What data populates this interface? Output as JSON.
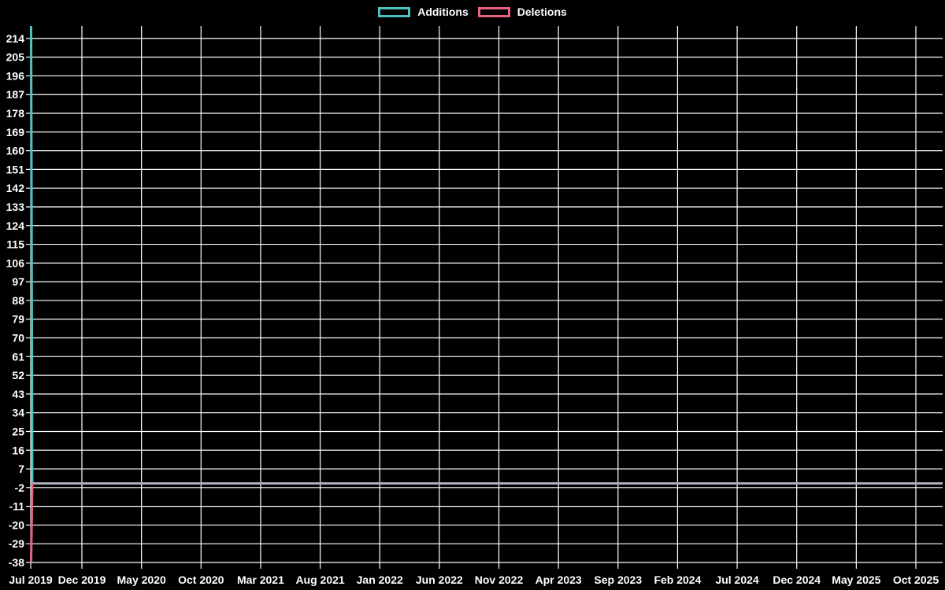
{
  "app": {
    "background_color": "#000000",
    "text_color": "#ffffff"
  },
  "legend": {
    "position": "top-center",
    "items": [
      {
        "label": "Additions",
        "color": "#4ec1c1"
      },
      {
        "label": "Deletions",
        "color": "#eb6180"
      }
    ]
  },
  "chart_data": {
    "type": "line",
    "title": "",
    "xlabel": "",
    "ylabel": "",
    "description": "Weekly additions/deletions frequency chart. Both series spike in the first week of Jul 2019 (additions to ~220 at chart top, deletions to -38) and are 0 for every later week through Oct 2025, drawing a flat overlapping baseline at 0.",
    "x_axis": {
      "tick_labels": [
        "Jul 2019",
        "Dec 2019",
        "May 2020",
        "Oct 2020",
        "Mar 2021",
        "Aug 2021",
        "Jan 2022",
        "Jun 2022",
        "Nov 2022",
        "Apr 2023",
        "Sep 2023",
        "Feb 2024",
        "Jul 2024",
        "Dec 2024",
        "May 2025",
        "Oct 2025"
      ]
    },
    "y_axis": {
      "ticks": [
        214,
        205,
        196,
        187,
        178,
        169,
        160,
        151,
        142,
        133,
        124,
        115,
        106,
        97,
        88,
        79,
        70,
        61,
        52,
        43,
        34,
        25,
        16,
        7,
        -2,
        -11,
        -20,
        -29,
        -38
      ],
      "tick_step": 9,
      "drawn_range": [
        -38,
        220
      ]
    },
    "series": [
      {
        "name": "Additions",
        "color": "#4ec1c1",
        "points": [
          {
            "x": "Jul 2019 (first week)",
            "y": 220
          },
          {
            "x": "all later weeks",
            "y": 0
          }
        ]
      },
      {
        "name": "Deletions",
        "color": "#eb6180",
        "points": [
          {
            "x": "Jul 2019 (first week)",
            "y": -38
          },
          {
            "x": "all later weeks",
            "y": 0
          }
        ]
      }
    ],
    "overlap_baseline_color": "#a4b6be",
    "grid": {
      "show": true,
      "color": "#ffffff"
    },
    "legend_position": "top-center",
    "background": "#000000"
  }
}
